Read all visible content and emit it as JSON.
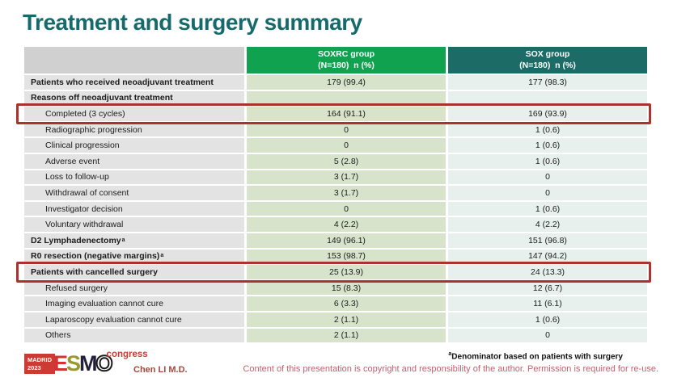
{
  "slide": {
    "title": "Treatment and surgery summary"
  },
  "table": {
    "header": {
      "soxrc_line1": "SOXRC group",
      "soxrc_line2": "(N=180)  n (%)",
      "sox_line1": "SOX group",
      "sox_line2": "(N=180)  n (%)"
    },
    "rows": [
      {
        "label": "Patients who received neoadjuvant treatment",
        "soxrc": "179 (99.4)",
        "sox": "177 (98.3)",
        "bold": true,
        "sub": false,
        "hl": false
      },
      {
        "label": "Reasons off neoadjuvant treatment",
        "soxrc": "",
        "sox": "",
        "bold": true,
        "sub": false,
        "hl": false
      },
      {
        "label": "Completed (3 cycles)",
        "soxrc": "164 (91.1)",
        "sox": "169 (93.9)",
        "bold": false,
        "sub": true,
        "hl": true
      },
      {
        "label": "Radiographic progression",
        "soxrc": "0",
        "sox": "1 (0.6)",
        "bold": false,
        "sub": true,
        "hl": false
      },
      {
        "label": "Clinical progression",
        "soxrc": "0",
        "sox": "1 (0.6)",
        "bold": false,
        "sub": true,
        "hl": false
      },
      {
        "label": "Adverse event",
        "soxrc": "5 (2.8)",
        "sox": "1 (0.6)",
        "bold": false,
        "sub": true,
        "hl": false
      },
      {
        "label": "Loss to follow-up",
        "soxrc": "3 (1.7)",
        "sox": "0",
        "bold": false,
        "sub": true,
        "hl": false
      },
      {
        "label": "Withdrawal of consent",
        "soxrc": "3 (1.7)",
        "sox": "0",
        "bold": false,
        "sub": true,
        "hl": false
      },
      {
        "label": "Investigator decision",
        "soxrc": "0",
        "sox": "1 (0.6)",
        "bold": false,
        "sub": true,
        "hl": false
      },
      {
        "label": "Voluntary withdrawal",
        "soxrc": "4 (2.2)",
        "sox": "4 (2.2)",
        "bold": false,
        "sub": true,
        "hl": false
      },
      {
        "label": "D2 Lymphadenectomy",
        "sup": "a",
        "soxrc": "149 (96.1)",
        "sox": "151 (96.8)",
        "bold": true,
        "sub": false,
        "hl": false
      },
      {
        "label": "R0 resection (negative margins)",
        "sup": "a",
        "soxrc": "153 (98.7)",
        "sox": "147 (94.2)",
        "bold": true,
        "sub": false,
        "hl": false
      },
      {
        "label": "Patients with cancelled surgery",
        "soxrc": "25 (13.9)",
        "sox": "24 (13.3)",
        "bold": true,
        "sub": false,
        "hl": true
      },
      {
        "label": "Refused surgery",
        "soxrc": "15 (8.3)",
        "sox": "12 (6.7)",
        "bold": false,
        "sub": true,
        "hl": false
      },
      {
        "label": "Imaging evaluation cannot cure",
        "soxrc": "6 (3.3)",
        "sox": "11 (6.1)",
        "bold": false,
        "sub": true,
        "hl": false
      },
      {
        "label": "Laparoscopy evaluation cannot cure",
        "soxrc": "2 (1.1)",
        "sox": "1 (0.6)",
        "bold": false,
        "sub": true,
        "hl": false
      },
      {
        "label": "Others",
        "soxrc": "2 (1.1)",
        "sox": "0",
        "bold": false,
        "sub": true,
        "hl": false
      }
    ]
  },
  "footer": {
    "logo": {
      "madrid": "MADRID",
      "year": "2023",
      "congress": "congress",
      "letters": [
        {
          "char": "E",
          "color": "#d23531",
          "outline": false
        },
        {
          "char": "S",
          "color": "#99992e",
          "outline": false
        },
        {
          "char": "M",
          "color": "#23203c",
          "outline": false
        },
        {
          "char": "O",
          "color": "#ffffff",
          "outline": true
        }
      ]
    },
    "presenter": "Chen LI M.D.",
    "footnote_sup": "a",
    "footnote": "Denominator based on patients with surgery",
    "copyright": "Content of this presentation is copyright and responsibility of the author. Permission is required for re-use."
  },
  "colors": {
    "title": "#176a6c",
    "header_green": "#10a24e",
    "header_teal": "#1d6b66",
    "header_gray": "#d0d0d0",
    "label_bg": "#e3e3e3",
    "soxrc_bg": "#d7e4cb",
    "sox_bg": "#e7f0ec",
    "highlight_border": "#a9332e",
    "logo_red": "#cd3a33",
    "presenter": "#a6473d",
    "copyright": "#c5616f"
  }
}
